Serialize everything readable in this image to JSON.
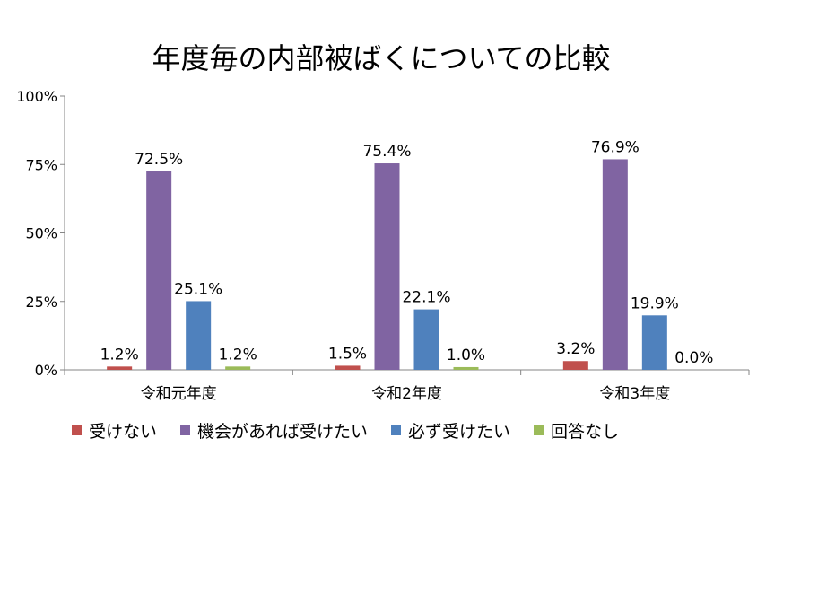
{
  "chart_data": {
    "type": "bar",
    "title": "年度毎の内部被ばくについての比較",
    "categories": [
      "令和元年度",
      "令和2年度",
      "令和3年度"
    ],
    "series": [
      {
        "name": "受けない",
        "color": "#C0504D",
        "values": [
          1.2,
          1.5,
          3.2
        ],
        "labels": [
          "1.2%",
          "1.5%",
          "3.2%"
        ]
      },
      {
        "name": "機会があれば受けたい",
        "color": "#8064A2",
        "values": [
          72.5,
          75.4,
          76.9
        ],
        "labels": [
          "72.5%",
          "75.4%",
          "76.9%"
        ]
      },
      {
        "name": "必ず受けたい",
        "color": "#4F81BD",
        "values": [
          25.1,
          22.1,
          19.9
        ],
        "labels": [
          "25.1%",
          "22.1%",
          "19.9%"
        ]
      },
      {
        "name": "回答なし",
        "color": "#9BBB59",
        "values": [
          1.2,
          1.0,
          0.0
        ],
        "labels": [
          "1.2%",
          "1.0%",
          "0.0%"
        ]
      }
    ],
    "ylim": [
      0,
      100
    ],
    "yticks": [
      0,
      25,
      50,
      75,
      100
    ],
    "ytick_labels": [
      "0%",
      "25%",
      "50%",
      "75%",
      "100%"
    ],
    "legend_position": "bottom",
    "grid": false
  }
}
